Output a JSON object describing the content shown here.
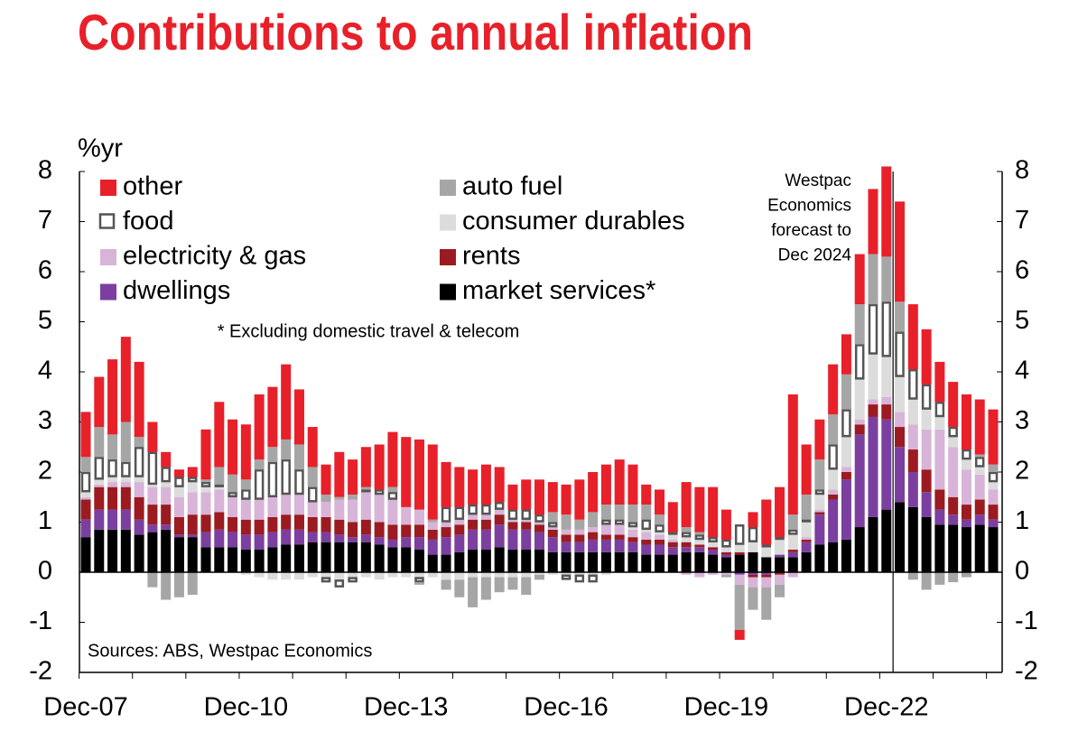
{
  "chart_data": {
    "type": "stacked_bar",
    "title": "Contributions to annual inflation",
    "y_label": "%yr",
    "note": "* Excluding domestic travel & telecom",
    "source": "Sources: ABS, Westpac Economics",
    "annotation": [
      "Westpac",
      "Economics",
      "forecast to",
      "Dec 2024"
    ],
    "categories": [
      "Dec-07",
      null,
      null,
      null,
      null,
      null,
      null,
      null,
      null,
      null,
      null,
      null,
      "Dec-10",
      null,
      null,
      null,
      null,
      null,
      null,
      null,
      null,
      null,
      null,
      null,
      "Dec-13",
      null,
      null,
      null,
      null,
      null,
      null,
      null,
      null,
      null,
      null,
      null,
      "Dec-16",
      null,
      null,
      null,
      null,
      null,
      null,
      null,
      null,
      null,
      null,
      null,
      "Dec-19",
      null,
      null,
      null,
      null,
      null,
      null,
      null,
      null,
      null,
      null,
      null,
      "Dec-22",
      null,
      null,
      null,
      null,
      null,
      null,
      null,
      null
    ],
    "ylim": [
      -2,
      8
    ],
    "yticks": [
      -2,
      -1,
      0,
      1,
      2,
      3,
      4,
      5,
      6,
      7,
      8
    ],
    "series": [
      {
        "name": "market services*",
        "color": "#000000",
        "values": [
          0.7,
          0.85,
          0.85,
          0.85,
          0.75,
          0.8,
          0.85,
          0.7,
          0.7,
          0.5,
          0.5,
          0.5,
          0.45,
          0.45,
          0.5,
          0.55,
          0.55,
          0.6,
          0.6,
          0.6,
          0.6,
          0.6,
          0.55,
          0.5,
          0.5,
          0.45,
          0.35,
          0.35,
          0.4,
          0.45,
          0.45,
          0.5,
          0.45,
          0.45,
          0.45,
          0.4,
          0.4,
          0.4,
          0.4,
          0.4,
          0.4,
          0.4,
          0.35,
          0.35,
          0.35,
          0.4,
          0.4,
          0.35,
          0.3,
          0.35,
          0.4,
          0.3,
          0.3,
          0.3,
          0.4,
          0.55,
          0.6,
          0.65,
          0.9,
          1.1,
          1.25,
          1.4,
          1.3,
          1.1,
          0.95,
          0.95,
          0.9,
          0.95,
          0.9
        ]
      },
      {
        "name": "dwellings",
        "color": "#7b3fa0",
        "values": [
          0.35,
          0.4,
          0.4,
          0.4,
          0.3,
          0.15,
          0.1,
          0.05,
          0.05,
          0.3,
          0.35,
          0.3,
          0.3,
          0.3,
          0.3,
          0.3,
          0.3,
          0.2,
          0.2,
          0.15,
          0.1,
          0.15,
          0.15,
          0.15,
          0.2,
          0.25,
          0.3,
          0.35,
          0.35,
          0.4,
          0.4,
          0.45,
          0.4,
          0.4,
          0.35,
          0.3,
          0.2,
          0.2,
          0.25,
          0.25,
          0.25,
          0.2,
          0.2,
          0.2,
          0.15,
          0.1,
          0.1,
          0.1,
          0.05,
          -0.05,
          -0.05,
          -0.05,
          0.05,
          0.1,
          0.2,
          0.6,
          0.85,
          1.2,
          1.85,
          2.0,
          1.8,
          1.1,
          0.7,
          0.5,
          0.3,
          0.2,
          0.15,
          0.2,
          0.15
        ]
      },
      {
        "name": "rents",
        "color": "#9b1b20",
        "values": [
          0.4,
          0.45,
          0.45,
          0.45,
          0.45,
          0.4,
          0.4,
          0.35,
          0.4,
          0.35,
          0.35,
          0.3,
          0.3,
          0.3,
          0.3,
          0.3,
          0.3,
          0.3,
          0.3,
          0.3,
          0.3,
          0.3,
          0.3,
          0.3,
          0.25,
          0.25,
          0.2,
          0.2,
          0.2,
          0.2,
          0.2,
          0.2,
          0.15,
          0.15,
          0.15,
          0.15,
          0.15,
          0.15,
          0.15,
          0.1,
          0.1,
          0.1,
          0.1,
          0.1,
          0.1,
          0.1,
          0.05,
          0.05,
          0.05,
          0.05,
          -0.05,
          -0.05,
          -0.05,
          0.05,
          0.05,
          0.05,
          0.1,
          0.15,
          0.2,
          0.25,
          0.3,
          0.4,
          0.45,
          0.45,
          0.4,
          0.35,
          0.3,
          0.3,
          0.3
        ]
      },
      {
        "name": "electricity & gas",
        "color": "#d8b4d8",
        "values": [
          0.05,
          0.05,
          0.1,
          0.1,
          0.3,
          0.35,
          0.35,
          0.4,
          0.45,
          0.45,
          0.45,
          0.4,
          0.4,
          0.4,
          0.4,
          0.4,
          0.4,
          0.3,
          0.3,
          0.4,
          0.45,
          0.55,
          0.55,
          0.5,
          0.35,
          0.3,
          0.15,
          0.1,
          0.1,
          0.1,
          0.1,
          0.1,
          0.05,
          0.05,
          0.05,
          0.05,
          0.1,
          0.1,
          0.1,
          0.2,
          0.2,
          0.15,
          0.15,
          0.1,
          0.05,
          -0.05,
          -0.1,
          -0.05,
          -0.05,
          -0.2,
          -0.2,
          -0.2,
          -0.2,
          -0.1,
          0.05,
          0.05,
          0.1,
          0.1,
          0.1,
          0.1,
          0.15,
          0.3,
          0.5,
          0.8,
          1.2,
          1.0,
          0.7,
          0.5,
          0.3
        ]
      },
      {
        "name": "consumer durables",
        "color": "#dcdcdc",
        "values": [
          0.1,
          0.1,
          0.1,
          0.1,
          0.1,
          0.05,
          0.1,
          0.2,
          0.2,
          0.1,
          0.05,
          0.0,
          -0.05,
          -0.1,
          -0.15,
          -0.15,
          -0.15,
          -0.1,
          -0.1,
          -0.15,
          -0.1,
          -0.1,
          -0.15,
          -0.1,
          -0.1,
          -0.1,
          -0.1,
          -0.15,
          -0.15,
          -0.1,
          -0.1,
          -0.1,
          -0.1,
          -0.1,
          -0.05,
          -0.05,
          -0.05,
          -0.05,
          -0.05,
          -0.05,
          0.0,
          0.05,
          0.05,
          0.05,
          0.1,
          0.1,
          0.1,
          0.1,
          0.1,
          0.15,
          0.2,
          0.2,
          0.3,
          0.3,
          0.3,
          0.3,
          0.4,
          0.6,
          0.8,
          0.9,
          0.8,
          0.7,
          0.5,
          0.4,
          0.25,
          0.2,
          0.2,
          0.15,
          0.15
        ]
      },
      {
        "name": "food",
        "color": "#ffffff",
        "values": [
          0.4,
          0.45,
          0.35,
          0.3,
          0.6,
          0.65,
          0.3,
          0.2,
          0.1,
          0.1,
          0.05,
          0.1,
          0.2,
          0.6,
          0.7,
          0.7,
          0.5,
          0.3,
          -0.1,
          -0.15,
          -0.1,
          0.05,
          0.1,
          0.15,
          0.0,
          -0.1,
          0.0,
          0.3,
          0.25,
          0.2,
          0.2,
          0.15,
          0.2,
          0.2,
          0.15,
          0.1,
          -0.1,
          -0.15,
          -0.15,
          0.1,
          0.1,
          0.1,
          0.2,
          0.15,
          0.05,
          0.1,
          0.1,
          0.1,
          0.15,
          0.4,
          0.3,
          0.05,
          0.05,
          0.1,
          0.05,
          0.1,
          0.5,
          0.55,
          0.7,
          1.0,
          1.1,
          0.9,
          0.6,
          0.5,
          0.3,
          0.2,
          0.2,
          0.2,
          0.2
        ]
      },
      {
        "name": "auto fuel",
        "color": "#a6a6a6",
        "values": [
          0.3,
          0.6,
          0.5,
          0.8,
          0.2,
          -0.3,
          -0.55,
          -0.5,
          -0.45,
          0.05,
          0.35,
          0.35,
          0.2,
          0.2,
          0.3,
          0.4,
          0.5,
          0.4,
          0.15,
          0.05,
          0.1,
          0.05,
          0.0,
          0.1,
          0.0,
          -0.05,
          0.05,
          -0.2,
          -0.35,
          -0.6,
          -0.45,
          -0.3,
          -0.25,
          -0.35,
          -0.1,
          0.2,
          0.3,
          0.2,
          0.3,
          0.3,
          0.3,
          0.35,
          0.3,
          0.2,
          0.0,
          0.1,
          0.05,
          0.0,
          -0.05,
          -0.9,
          -0.45,
          -0.65,
          -0.25,
          0.3,
          0.5,
          0.6,
          0.6,
          0.7,
          0.8,
          1.0,
          0.9,
          0.6,
          -0.15,
          -0.35,
          -0.25,
          -0.2,
          -0.1,
          0.05,
          0.15
        ]
      },
      {
        "name": "other",
        "color": "#e8202a",
        "values": [
          0.9,
          1.0,
          1.5,
          1.7,
          1.5,
          0.6,
          0.3,
          0.15,
          0.2,
          1.0,
          1.3,
          1.1,
          1.1,
          1.3,
          1.2,
          1.5,
          1.1,
          0.8,
          0.6,
          0.9,
          0.7,
          0.8,
          0.9,
          1.1,
          1.4,
          1.4,
          1.5,
          0.9,
          0.8,
          0.7,
          0.8,
          0.7,
          0.5,
          0.6,
          0.7,
          0.6,
          0.6,
          0.8,
          0.8,
          0.8,
          0.9,
          0.8,
          0.4,
          0.5,
          0.6,
          0.9,
          0.9,
          1.0,
          0.6,
          -0.2,
          0.3,
          0.9,
          1.0,
          2.4,
          1.0,
          0.8,
          1.0,
          0.8,
          1.0,
          1.3,
          1.8,
          2.0,
          1.3,
          1.1,
          0.8,
          0.9,
          1.1,
          1.1,
          1.1
        ]
      }
    ]
  }
}
